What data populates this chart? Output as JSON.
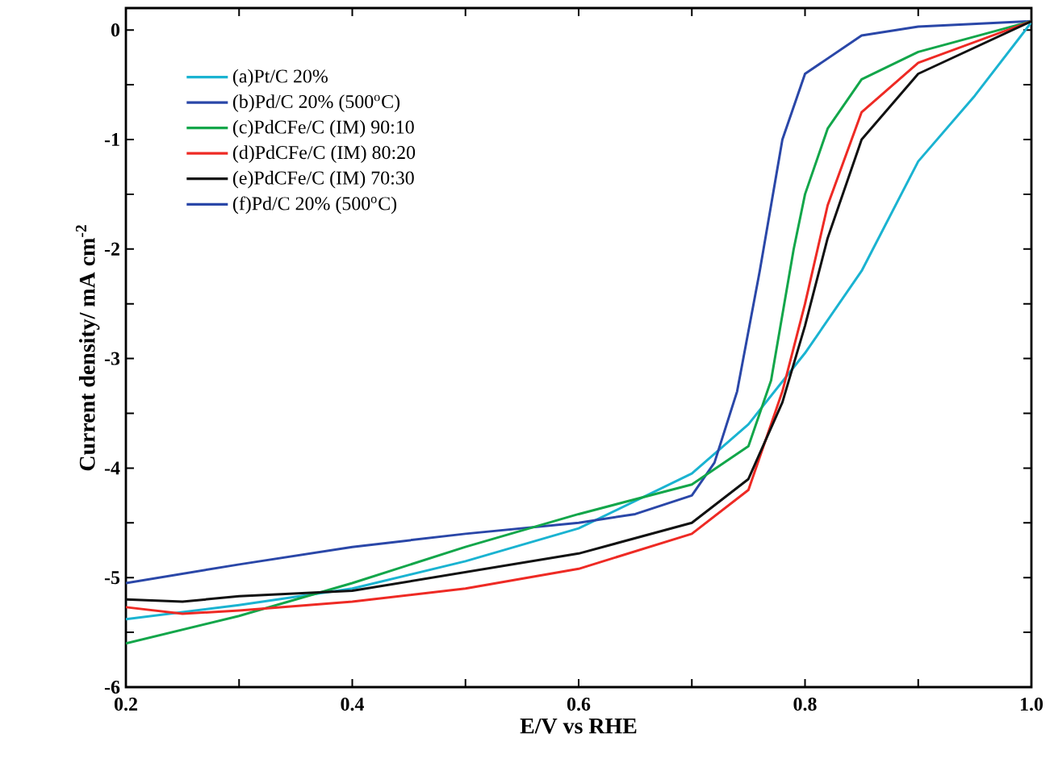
{
  "chart_data": {
    "type": "line",
    "xlabel": "E/V vs RHE",
    "ylabel": "Current density/ mA cm$^{-2}$",
    "xlim": [
      0.2,
      1.0
    ],
    "ylim": [
      -6,
      0.2
    ],
    "xticks": [
      0.2,
      {
        "value": 0.3,
        "label": null
      },
      0.4,
      {
        "value": 0.5,
        "label": null
      },
      0.6,
      {
        "value": 0.7,
        "label": null
      },
      0.8,
      {
        "value": 0.9,
        "label": null
      },
      {
        "value": 1.0,
        "label": "1.0"
      }
    ],
    "yticks": [
      -6,
      {
        "value": -5.5,
        "label": null
      },
      -5,
      {
        "value": -4.5,
        "label": null
      },
      -4,
      {
        "value": -3.5,
        "label": null
      },
      -3,
      {
        "value": -2.5,
        "label": null
      },
      -2,
      {
        "value": -1.5,
        "label": null
      },
      -1,
      {
        "value": -0.5,
        "label": null
      },
      0
    ],
    "legend": "top left",
    "marker": "none",
    "line_style": "solid",
    "grid": false,
    "series": [
      {
        "name": "(a)Pt/C 20%",
        "color": "#1ab3d1",
        "x": [
          0.2,
          0.3,
          0.4,
          0.5,
          0.6,
          0.7,
          0.75,
          0.8,
          0.85,
          0.9,
          0.95,
          1.0
        ],
        "values": [
          -5.38,
          -5.25,
          -5.1,
          -4.85,
          -4.55,
          -4.05,
          -3.6,
          -2.95,
          -2.2,
          -1.2,
          -0.6,
          0.07
        ]
      },
      {
        "name": "(b)Pd/C 20% (500$^{o}$C)",
        "color": "#2a47a8",
        "x": [
          0.2,
          0.3,
          0.4,
          0.5,
          0.6,
          0.65,
          0.7,
          0.72,
          0.74,
          0.76,
          0.78,
          0.8,
          0.85,
          0.9,
          1.0
        ],
        "values": [
          -5.05,
          -4.88,
          -4.72,
          -4.6,
          -4.5,
          -4.42,
          -4.25,
          -3.95,
          -3.3,
          -2.2,
          -1.0,
          -0.4,
          -0.05,
          0.03,
          0.08
        ]
      },
      {
        "name": "(c)PdCFe/C (IM) 90:10",
        "color": "#12a64a",
        "x": [
          0.2,
          0.3,
          0.4,
          0.5,
          0.6,
          0.7,
          0.75,
          0.77,
          0.79,
          0.8,
          0.82,
          0.85,
          0.9,
          1.0
        ],
        "values": [
          -5.6,
          -5.35,
          -5.05,
          -4.72,
          -4.42,
          -4.15,
          -3.8,
          -3.2,
          -2.0,
          -1.5,
          -0.9,
          -0.45,
          -0.2,
          0.08
        ]
      },
      {
        "name": "(d)PdCFe/C (IM) 80:20",
        "color": "#ee2a24",
        "x": [
          0.2,
          0.25,
          0.3,
          0.4,
          0.5,
          0.6,
          0.7,
          0.75,
          0.78,
          0.8,
          0.82,
          0.85,
          0.9,
          1.0
        ],
        "values": [
          -5.27,
          -5.33,
          -5.3,
          -5.22,
          -5.1,
          -4.92,
          -4.6,
          -4.2,
          -3.3,
          -2.5,
          -1.6,
          -0.75,
          -0.3,
          0.08
        ]
      },
      {
        "name": "(e)PdCFe/C (IM) 70:30",
        "color": "#111111",
        "x": [
          0.2,
          0.25,
          0.3,
          0.4,
          0.5,
          0.6,
          0.7,
          0.75,
          0.78,
          0.8,
          0.82,
          0.85,
          0.9,
          1.0
        ],
        "values": [
          -5.2,
          -5.22,
          -5.17,
          -5.12,
          -4.95,
          -4.78,
          -4.5,
          -4.1,
          -3.4,
          -2.7,
          -1.9,
          -1.0,
          -0.4,
          0.08
        ]
      },
      {
        "name": "(f)Pd/C 20% (500$^{o}$C)",
        "color": "#2a47a8"
      }
    ]
  }
}
